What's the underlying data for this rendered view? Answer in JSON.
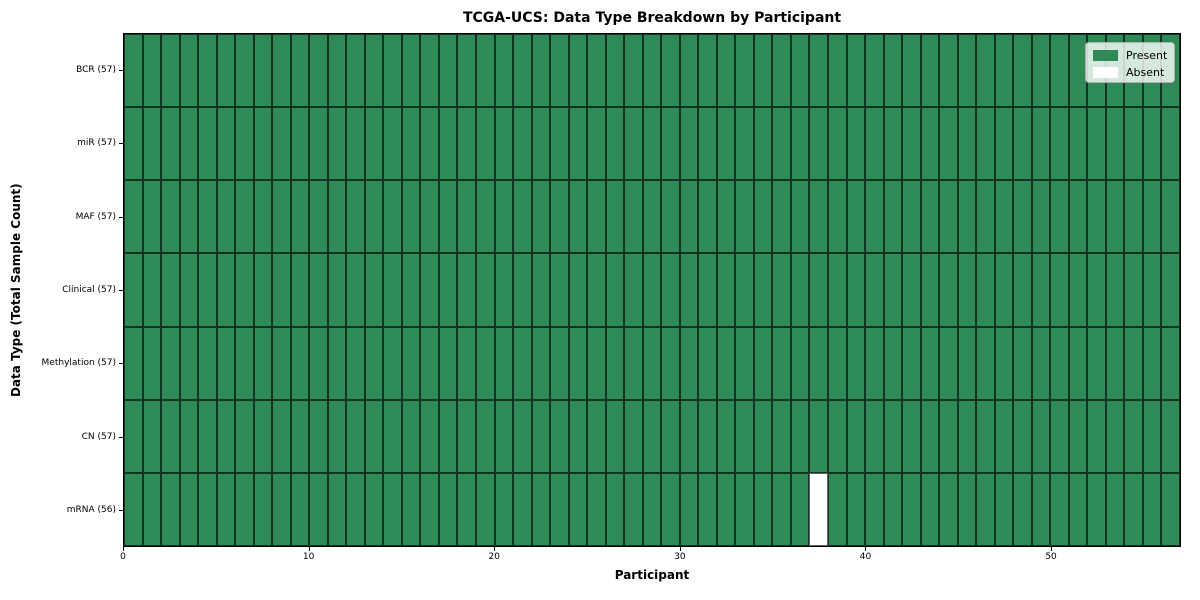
{
  "figure": {
    "background": "#ffffff"
  },
  "chart_data": {
    "type": "heatmap",
    "title": "TCGA-UCS: Data Type Breakdown by Participant",
    "xlabel": "Participant",
    "ylabel": "Data Type (Total Sample Count)",
    "x_range": [
      0,
      57
    ],
    "x_ticks": [
      0,
      10,
      20,
      30,
      40,
      50
    ],
    "n_participants": 57,
    "rows": [
      {
        "label": "BCR (57)",
        "present_count": 57,
        "absent_participants": []
      },
      {
        "label": "miR (57)",
        "present_count": 57,
        "absent_participants": []
      },
      {
        "label": "MAF (57)",
        "present_count": 57,
        "absent_participants": []
      },
      {
        "label": "Clinical (57)",
        "present_count": 57,
        "absent_participants": []
      },
      {
        "label": "Methylation (57)",
        "present_count": 57,
        "absent_participants": []
      },
      {
        "label": "CN (57)",
        "present_count": 57,
        "absent_participants": []
      },
      {
        "label": "mRNA (56)",
        "present_count": 56,
        "absent_participants": [
          37
        ]
      }
    ],
    "legend": {
      "position": "upper-right",
      "entries": [
        {
          "label": "Present",
          "color": "#2e8b57"
        },
        {
          "label": "Absent",
          "color": "#ffffff"
        }
      ]
    },
    "colors": {
      "present": "#2e8b57",
      "absent": "#ffffff",
      "grid_line": "rgba(0,0,0,0.62)",
      "axis": "#000000"
    },
    "grid": true
  }
}
